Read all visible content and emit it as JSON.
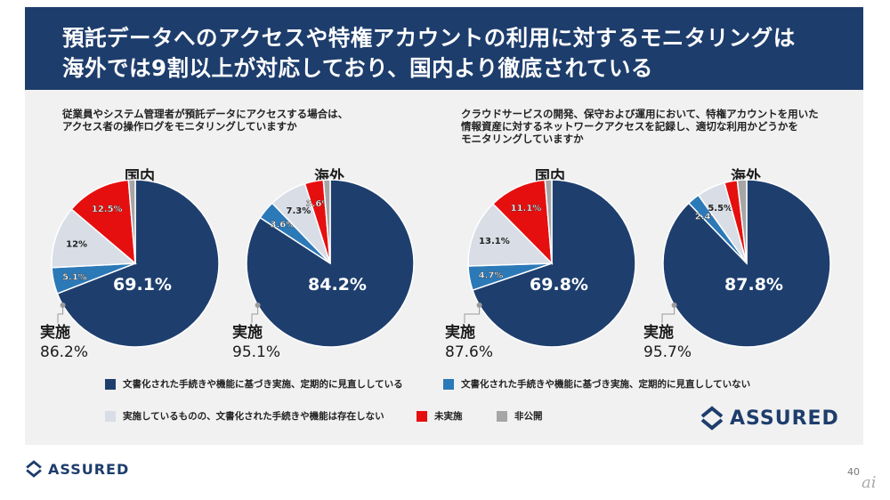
{
  "banner": {
    "line1": "預託データへのアクセスや特権アカウントの利用に対するモニタリングは",
    "line2": "海外では9割以上が対応しており、国内より徹底されている"
  },
  "colors": {
    "doc_reviewed": "#1e3f6e",
    "doc_not_reviewed": "#2c79b8",
    "no_doc": "#d8dde6",
    "not_implemented": "#e60f0f",
    "undisclosed": "#a6a6a6"
  },
  "legend": {
    "items": [
      {
        "key": "doc_reviewed",
        "label": "文書化された手続きや機能に基づき実施、定期的に見直ししている"
      },
      {
        "key": "doc_not_reviewed",
        "label": "文書化された手続きや機能に基づき実施、定期的に見直ししていない"
      },
      {
        "key": "no_doc",
        "label": "実施しているものの、文書化された手続きや機能は存在しない"
      },
      {
        "key": "not_implemented",
        "label": "未実施"
      },
      {
        "key": "undisclosed",
        "label": "非公開"
      }
    ]
  },
  "chart_data": [
    {
      "type": "pie",
      "group_question": "従業員やシステム管理者が預託データにアクセスする場合は、\nアクセス者の操作ログをモニタリングしていますか",
      "title": "国内",
      "slices": [
        {
          "key": "doc_reviewed",
          "value": 69.1,
          "label": "69.1%"
        },
        {
          "key": "doc_not_reviewed",
          "value": 5.1,
          "label": "5.1%"
        },
        {
          "key": "no_doc",
          "value": 12.0,
          "label": "12%"
        },
        {
          "key": "not_implemented",
          "value": 12.5,
          "label": "12.5%"
        },
        {
          "key": "undisclosed",
          "value": 1.3,
          "label": ""
        }
      ],
      "implemented_label": "実施",
      "implemented_value": "86.2%"
    },
    {
      "type": "pie",
      "title": "海外",
      "slices": [
        {
          "key": "doc_reviewed",
          "value": 84.2,
          "label": "84.2%"
        },
        {
          "key": "doc_not_reviewed",
          "value": 3.6,
          "label": "3.6%"
        },
        {
          "key": "no_doc",
          "value": 7.3,
          "label": "7.3%"
        },
        {
          "key": "not_implemented",
          "value": 3.6,
          "label": "3.6%"
        },
        {
          "key": "undisclosed",
          "value": 1.3,
          "label": ""
        }
      ],
      "implemented_label": "実施",
      "implemented_value": "95.1%"
    },
    {
      "type": "pie",
      "group_question": "クラウドサービスの開発、保守および運用において、特権アカウントを用いた\n情報資産に対するネットワークアクセスを記録し、適切な利用かどうかを\nモニタリングしていますか",
      "title": "国内",
      "slices": [
        {
          "key": "doc_reviewed",
          "value": 69.8,
          "label": "69.8%"
        },
        {
          "key": "doc_not_reviewed",
          "value": 4.7,
          "label": "4.7%"
        },
        {
          "key": "no_doc",
          "value": 13.1,
          "label": "13.1%"
        },
        {
          "key": "not_implemented",
          "value": 11.1,
          "label": "11.1%"
        },
        {
          "key": "undisclosed",
          "value": 1.3,
          "label": ""
        }
      ],
      "implemented_label": "実施",
      "implemented_value": "87.6%"
    },
    {
      "type": "pie",
      "title": "海外",
      "slices": [
        {
          "key": "doc_reviewed",
          "value": 87.8,
          "label": "87.8%"
        },
        {
          "key": "doc_not_reviewed",
          "value": 2.4,
          "label": "2.4%"
        },
        {
          "key": "no_doc",
          "value": 5.5,
          "label": "5.5%"
        },
        {
          "key": "not_implemented",
          "value": 2.5,
          "label": ""
        },
        {
          "key": "undisclosed",
          "value": 1.8,
          "label": ""
        }
      ],
      "implemented_label": "実施",
      "implemented_value": "95.7%"
    }
  ],
  "brand": {
    "name": "ASSURED"
  },
  "footer": {
    "page_number": "40",
    "watermark": "ai"
  }
}
